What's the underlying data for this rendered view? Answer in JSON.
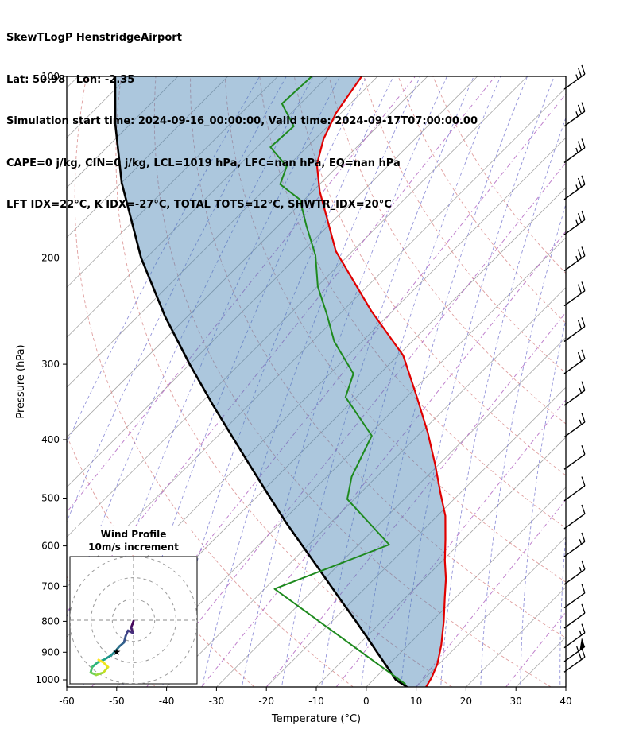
{
  "header": {
    "title": "SkewTLogP HenstridgeAirport",
    "location_line": "Lat: 50.98   Lon: -2.35",
    "time_line": "Simulation start time: 2024-09-16_00:00:00, Valid time: 2024-09-17T07:00:00.00",
    "indices_line1": "CAPE=0 j/kg, CIN=0 j/kg, LCL=1019 hPa, LFC=nan hPa, EQ=nan hPa",
    "indices_line2": "LFT IDX=22°C, K IDX=-27°C, TOTAL TOTS=12°C, SHWTR_IDX=20°C"
  },
  "chart_data": {
    "type": "line",
    "variant": "skewt-logp-sounding",
    "title": "SkewTLogP HenstridgeAirport",
    "xlabel": "Temperature (°C)",
    "ylabel": "Pressure (hPa)",
    "x_ticks": [
      -60,
      -50,
      -40,
      -30,
      -20,
      -10,
      0,
      10,
      20,
      30,
      40
    ],
    "y_ticks": [
      100,
      200,
      300,
      400,
      500,
      600,
      700,
      800,
      900,
      1000
    ],
    "xlim": [
      -60,
      40
    ],
    "p_top": 100,
    "p_bottom": 1030,
    "grid": "on",
    "series": [
      {
        "name": "temperature",
        "points": [
          [
            1028,
            12.0
          ],
          [
            990,
            11.2
          ],
          [
            940,
            9.6
          ],
          [
            875,
            6.6
          ],
          [
            800,
            2.4
          ],
          [
            730,
            -2.2
          ],
          [
            680,
            -5.7
          ],
          [
            635,
            -9.5
          ],
          [
            585,
            -13.7
          ],
          [
            535,
            -18.4
          ],
          [
            490,
            -24.0
          ],
          [
            440,
            -30.7
          ],
          [
            390,
            -38.5
          ],
          [
            340,
            -47.9
          ],
          [
            290,
            -59.0
          ],
          [
            245,
            -74.2
          ],
          [
            195,
            -93.3
          ],
          [
            155,
            -108.6
          ],
          [
            140,
            -114.5
          ],
          [
            127,
            -118.3
          ],
          [
            115,
            -121.0
          ],
          [
            100,
            -123.2
          ]
        ]
      },
      {
        "name": "parcel",
        "points": [
          [
            1028,
            8.2
          ],
          [
            1000,
            4.5
          ],
          [
            950,
            0.0
          ],
          [
            900,
            -4.8
          ],
          [
            850,
            -9.8
          ],
          [
            800,
            -15.2
          ],
          [
            750,
            -21.0
          ],
          [
            700,
            -27.2
          ],
          [
            650,
            -33.8
          ],
          [
            600,
            -41.0
          ],
          [
            550,
            -48.8
          ],
          [
            500,
            -57.0
          ],
          [
            450,
            -66.0
          ],
          [
            400,
            -76.0
          ],
          [
            350,
            -87.3
          ],
          [
            300,
            -100.0
          ],
          [
            250,
            -114.5
          ],
          [
            200,
            -131.0
          ],
          [
            150,
            -150.0
          ],
          [
            120,
            -163.0
          ],
          [
            100,
            -172.6
          ]
        ]
      },
      {
        "name": "dewpoint",
        "points": [
          [
            1016,
            7.2
          ],
          [
            707,
            -38.0
          ],
          [
            597,
            -23.9
          ],
          [
            502,
            -41.4
          ],
          [
            461,
            -45.0
          ],
          [
            394,
            -49.2
          ],
          [
            340,
            -62.2
          ],
          [
            311,
            -65.3
          ],
          [
            275,
            -75.6
          ],
          [
            248,
            -82.5
          ],
          [
            223,
            -89.9
          ],
          [
            198,
            -96.6
          ],
          [
            177,
            -104.3
          ],
          [
            160,
            -110.9
          ],
          [
            151,
            -117.9
          ],
          [
            141,
            -120.2
          ],
          [
            131,
            -127.3
          ],
          [
            121,
            -126.8
          ],
          [
            111,
            -133.7
          ],
          [
            100,
            -133.2
          ]
        ]
      }
    ],
    "cape_shading": {
      "between": [
        "parcel",
        "temperature"
      ]
    },
    "wind_barbs": {
      "units": "kt",
      "levels": [
        {
          "p": 105,
          "kt": 25
        },
        {
          "p": 121,
          "kt": 25
        },
        {
          "p": 139,
          "kt": 25
        },
        {
          "p": 160,
          "kt": 25
        },
        {
          "p": 183,
          "kt": 25
        },
        {
          "p": 210,
          "kt": 25
        },
        {
          "p": 240,
          "kt": 20
        },
        {
          "p": 275,
          "kt": 20
        },
        {
          "p": 311,
          "kt": 20
        },
        {
          "p": 351,
          "kt": 15
        },
        {
          "p": 396,
          "kt": 15
        },
        {
          "p": 448,
          "kt": 10
        },
        {
          "p": 505,
          "kt": 10
        },
        {
          "p": 562,
          "kt": 10
        },
        {
          "p": 625,
          "kt": 15
        },
        {
          "p": 695,
          "kt": 15
        },
        {
          "p": 760,
          "kt": 10
        },
        {
          "p": 821,
          "kt": 10
        },
        {
          "p": 885,
          "kt": 15
        },
        {
          "p": 933,
          "kt": 55
        },
        {
          "p": 971,
          "kt": 20
        }
      ]
    },
    "hodograph": {
      "title": "Wind Profile",
      "subtitle": "10m/s increment",
      "ring_interval_ms": 10,
      "rings_ms": [
        10,
        20,
        30
      ],
      "trace_uv_ms": [
        [
          0.0,
          -0.4
        ],
        [
          -1.1,
          -3.4
        ],
        [
          -0.4,
          -6.0
        ],
        [
          -2.6,
          -4.9
        ],
        [
          -3.7,
          -7.5
        ],
        [
          -4.5,
          -10.5
        ],
        [
          -6.7,
          -12.4
        ],
        [
          -8.2,
          -14.2
        ],
        [
          -10.5,
          -16.5
        ],
        [
          -13.5,
          -18.4
        ],
        [
          -16.9,
          -19.9
        ],
        [
          -19.5,
          -22.1
        ],
        [
          -20.2,
          -24.7
        ],
        [
          -17.6,
          -25.8
        ],
        [
          -14.2,
          -24.7
        ],
        [
          -12.0,
          -22.1
        ],
        [
          -14.2,
          -19.9
        ],
        [
          -16.5,
          -18.7
        ]
      ],
      "marker_uv_ms": [
        -7.9,
        -15.0
      ]
    },
    "guides": {
      "isotherm_step_c": 10,
      "dry_adiabats_theta_c": [
        -40,
        -20,
        0,
        20,
        40,
        60,
        80,
        100,
        120,
        140,
        160,
        180,
        200
      ],
      "moist_adiabats_thetaw_c": [
        -80,
        -72,
        -64,
        -56,
        -48,
        -40,
        -32,
        -24,
        -16,
        -8,
        0,
        8,
        16,
        24,
        32,
        40
      ],
      "mixing_lines_t0_c": [
        -88,
        -72,
        -55,
        -44,
        -33,
        -20,
        -6,
        10,
        28
      ]
    },
    "colors": {
      "isotherm": "#a6a6a6",
      "dry_adiabat": "#d98c8c",
      "moist_adiabat": "#7878cf",
      "mixing_ratio": "#b56ac4",
      "temperature": "#e00000",
      "dewpoint": "#1e8a1e",
      "parcel": "#000000",
      "shade": "rgba(70,130,180,0.45)",
      "barb": "#000000"
    }
  }
}
